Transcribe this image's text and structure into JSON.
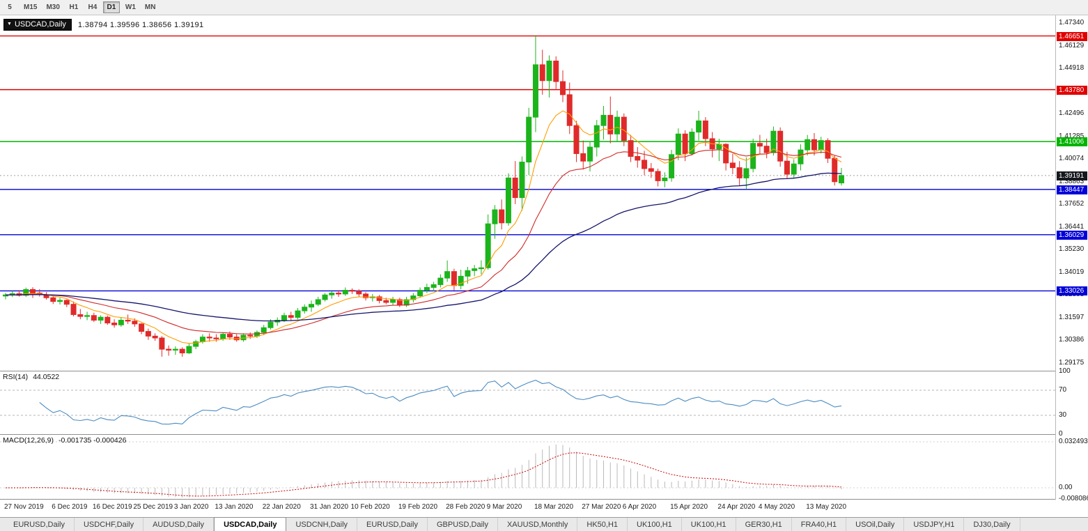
{
  "toolbar": {
    "timeframes": [
      "5",
      "M15",
      "M30",
      "H1",
      "H4",
      "D1",
      "W1",
      "MN"
    ],
    "active": "D1"
  },
  "tabs": {
    "items": [
      "EURUSD,Daily",
      "USDCHF,Daily",
      "AUDUSD,Daily",
      "USDCAD,Daily",
      "USDCNH,Daily",
      "EURUSD,Daily",
      "GBPUSD,Daily",
      "XAUUSD,Monthly",
      "HK50,H1",
      "UK100,H1",
      "UK100,H1",
      "GER30,H1",
      "FRA40,H1",
      "USOil,Daily",
      "USDJPY,H1",
      "DJ30,Daily"
    ],
    "active_index": 3
  },
  "chart_data": {
    "type": "candlestick",
    "title_overlay": {
      "symbol": "USDCAD,Daily",
      "ohlc": "1.38794 1.39596 1.38656 1.39191"
    },
    "colors": {
      "up": "#1cb41c",
      "down": "#e02a2a",
      "background": "#ffffff"
    },
    "price_axis": {
      "range": {
        "min": 1.2876,
        "max": 1.4775
      },
      "ticks": [
        "1.47340",
        "1.46129",
        "1.44918",
        "1.43707",
        "1.42496",
        "1.41285",
        "1.40074",
        "1.38863",
        "1.37652",
        "1.36441",
        "1.35230",
        "1.34019",
        "1.32808",
        "1.31597",
        "1.30386",
        "1.29175"
      ]
    },
    "hlines": [
      {
        "label": "1.46651",
        "color": "#e00000"
      },
      {
        "label": "1.43780",
        "color": "#e00000"
      },
      {
        "label": "1.41006",
        "color": "#00b400"
      },
      {
        "label": "1.38447",
        "color": "#0000d8"
      },
      {
        "label": "1.36029",
        "color": "#0000d8"
      },
      {
        "label": "1.33026",
        "color": "#0000d8"
      }
    ],
    "current_price": {
      "label": "1.39191",
      "color": "#15181d"
    },
    "moving_averages": [
      {
        "period": 8,
        "color": "#ff9c00",
        "width": 1.1
      },
      {
        "period": 21,
        "color": "#d02828",
        "width": 1.1
      },
      {
        "period": 55,
        "color": "#14146b",
        "width": 1.3
      }
    ],
    "rsi": {
      "label": "RSI(14)",
      "value": "44.0522",
      "period": 14,
      "levels": [
        70,
        30
      ],
      "axis": [
        "100",
        "70",
        "30",
        "0"
      ],
      "color": "#4a8bc2"
    },
    "macd": {
      "label": "MACD(12,26,9)",
      "values": "-0.001735 -0.000426",
      "fast": 12,
      "slow": 26,
      "signal": 9,
      "axis": [
        "0.032493",
        "0.00",
        "-0.008086"
      ],
      "hist_color": "#b9b9b9",
      "signal_color": "#c80000"
    },
    "x_labels": [
      {
        "text": "27 Nov 2019",
        "bar": 0
      },
      {
        "text": "6 Dec 2019",
        "bar": 7
      },
      {
        "text": "16 Dec 2019",
        "bar": 13
      },
      {
        "text": "25 Dec 2019",
        "bar": 19
      },
      {
        "text": "3 Jan 2020",
        "bar": 25
      },
      {
        "text": "13 Jan 2020",
        "bar": 31
      },
      {
        "text": "22 Jan 2020",
        "bar": 38
      },
      {
        "text": "31 Jan 2020",
        "bar": 45
      },
      {
        "text": "10 Feb 2020",
        "bar": 51
      },
      {
        "text": "19 Feb 2020",
        "bar": 58
      },
      {
        "text": "28 Feb 2020",
        "bar": 65
      },
      {
        "text": "9 Mar 2020",
        "bar": 71
      },
      {
        "text": "18 Mar 2020",
        "bar": 78
      },
      {
        "text": "27 Mar 2020",
        "bar": 85
      },
      {
        "text": "6 Apr 2020",
        "bar": 91
      },
      {
        "text": "15 Apr 2020",
        "bar": 98
      },
      {
        "text": "24 Apr 2020",
        "bar": 105
      },
      {
        "text": "4 May 2020",
        "bar": 111
      },
      {
        "text": "13 May 2020",
        "bar": 118
      }
    ],
    "candles": [
      [
        1.3275,
        1.3292,
        1.3257,
        1.3281
      ],
      [
        1.3281,
        1.3302,
        1.327,
        1.3288
      ],
      [
        1.3288,
        1.3306,
        1.3272,
        1.3279
      ],
      [
        1.3279,
        1.332,
        1.327,
        1.331
      ],
      [
        1.331,
        1.3322,
        1.3265,
        1.3291
      ],
      [
        1.3291,
        1.3312,
        1.3272,
        1.3282
      ],
      [
        1.3282,
        1.3296,
        1.3256,
        1.3266
      ],
      [
        1.3266,
        1.3277,
        1.3232,
        1.3246
      ],
      [
        1.3246,
        1.3266,
        1.323,
        1.3252
      ],
      [
        1.3252,
        1.3257,
        1.3216,
        1.3231
      ],
      [
        1.3231,
        1.3246,
        1.3166,
        1.3176
      ],
      [
        1.3176,
        1.3206,
        1.3151,
        1.3166
      ],
      [
        1.3166,
        1.3191,
        1.3146,
        1.3171
      ],
      [
        1.3171,
        1.3186,
        1.3136,
        1.3146
      ],
      [
        1.3146,
        1.3172,
        1.3126,
        1.3162
      ],
      [
        1.3162,
        1.3171,
        1.3121,
        1.3131
      ],
      [
        1.3131,
        1.3151,
        1.3106,
        1.3121
      ],
      [
        1.3121,
        1.3161,
        1.3111,
        1.3146
      ],
      [
        1.3146,
        1.3176,
        1.3126,
        1.3141
      ],
      [
        1.3141,
        1.3156,
        1.3111,
        1.3126
      ],
      [
        1.3126,
        1.3131,
        1.3071,
        1.3086
      ],
      [
        1.3086,
        1.3101,
        1.3041,
        1.3061
      ],
      [
        1.3061,
        1.3076,
        1.3036,
        1.3051
      ],
      [
        1.3051,
        1.3061,
        1.2951,
        1.2991
      ],
      [
        1.2991,
        1.3011,
        1.2956,
        1.2986
      ],
      [
        1.2986,
        1.3006,
        1.2961,
        1.2991
      ],
      [
        1.2991,
        1.3001,
        1.2951,
        1.2971
      ],
      [
        1.2971,
        1.3021,
        1.2966,
        1.3006
      ],
      [
        1.3006,
        1.3041,
        1.2991,
        1.3031
      ],
      [
        1.3031,
        1.3071,
        1.3021,
        1.3056
      ],
      [
        1.3056,
        1.3076,
        1.3031,
        1.3051
      ],
      [
        1.3051,
        1.3071,
        1.3031,
        1.3046
      ],
      [
        1.3046,
        1.3081,
        1.3036,
        1.3071
      ],
      [
        1.3071,
        1.3086,
        1.3041,
        1.3056
      ],
      [
        1.3056,
        1.3071,
        1.3031,
        1.3041
      ],
      [
        1.3041,
        1.3076,
        1.3031,
        1.3066
      ],
      [
        1.3066,
        1.3081,
        1.3046,
        1.3061
      ],
      [
        1.3061,
        1.3091,
        1.3051,
        1.3081
      ],
      [
        1.3081,
        1.3121,
        1.3066,
        1.3106
      ],
      [
        1.3106,
        1.3151,
        1.3096,
        1.3136
      ],
      [
        1.3136,
        1.3161,
        1.3116,
        1.3146
      ],
      [
        1.3146,
        1.3186,
        1.3136,
        1.3171
      ],
      [
        1.3171,
        1.3191,
        1.3141,
        1.3161
      ],
      [
        1.3161,
        1.3211,
        1.3151,
        1.3196
      ],
      [
        1.3196,
        1.3231,
        1.3181,
        1.3216
      ],
      [
        1.3216,
        1.3251,
        1.3191,
        1.3231
      ],
      [
        1.3231,
        1.3271,
        1.3221,
        1.3256
      ],
      [
        1.3256,
        1.3291,
        1.3246,
        1.3281
      ],
      [
        1.3281,
        1.3301,
        1.3261,
        1.3291
      ],
      [
        1.3291,
        1.3306,
        1.3271,
        1.3286
      ],
      [
        1.3286,
        1.3321,
        1.3276,
        1.3306
      ],
      [
        1.3306,
        1.3316,
        1.3286,
        1.3301
      ],
      [
        1.3301,
        1.3311,
        1.3271,
        1.3286
      ],
      [
        1.3286,
        1.3296,
        1.3251,
        1.3266
      ],
      [
        1.3266,
        1.3286,
        1.3246,
        1.3271
      ],
      [
        1.3271,
        1.3281,
        1.3236,
        1.3251
      ],
      [
        1.3251,
        1.3266,
        1.3231,
        1.3241
      ],
      [
        1.3241,
        1.3271,
        1.3226,
        1.3256
      ],
      [
        1.3256,
        1.3266,
        1.3216,
        1.3226
      ],
      [
        1.3226,
        1.3271,
        1.3216,
        1.3256
      ],
      [
        1.3256,
        1.3291,
        1.3241,
        1.3276
      ],
      [
        1.3276,
        1.3321,
        1.3266,
        1.3306
      ],
      [
        1.3306,
        1.3341,
        1.3291,
        1.3321
      ],
      [
        1.3321,
        1.3351,
        1.3301,
        1.3336
      ],
      [
        1.3336,
        1.3391,
        1.3321,
        1.3371
      ],
      [
        1.3371,
        1.3465,
        1.3351,
        1.3406
      ],
      [
        1.3406,
        1.3421,
        1.3306,
        1.3331
      ],
      [
        1.3331,
        1.3416,
        1.3311,
        1.3381
      ],
      [
        1.3381,
        1.3431,
        1.3341,
        1.3411
      ],
      [
        1.3411,
        1.3441,
        1.3381,
        1.3421
      ],
      [
        1.3421,
        1.3466,
        1.3391,
        1.3426
      ],
      [
        1.3426,
        1.3711,
        1.3416,
        1.3661
      ],
      [
        1.3661,
        1.3761,
        1.3581,
        1.3736
      ],
      [
        1.3736,
        1.3791,
        1.3631,
        1.3666
      ],
      [
        1.3666,
        1.3931,
        1.3651,
        1.3906
      ],
      [
        1.3906,
        1.3996,
        1.3766,
        1.3801
      ],
      [
        1.3801,
        1.4021,
        1.3731,
        1.3991
      ],
      [
        1.3991,
        1.4281,
        1.3921,
        1.4231
      ],
      [
        1.4231,
        1.4669,
        1.4151,
        1.4511
      ],
      [
        1.4511,
        1.4591,
        1.4351,
        1.4426
      ],
      [
        1.4426,
        1.4561,
        1.4336,
        1.4531
      ],
      [
        1.4531,
        1.4556,
        1.4381,
        1.4421
      ],
      [
        1.4421,
        1.4481,
        1.4311,
        1.4351
      ],
      [
        1.4351,
        1.4416,
        1.4141,
        1.4186
      ],
      [
        1.4186,
        1.4211,
        1.3991,
        1.4036
      ],
      [
        1.4036,
        1.4106,
        1.3951,
        1.3996
      ],
      [
        1.3996,
        1.4101,
        1.3941,
        1.4071
      ],
      [
        1.4071,
        1.4216,
        1.4021,
        1.4186
      ],
      [
        1.4186,
        1.4291,
        1.4111,
        1.4241
      ],
      [
        1.4241,
        1.4341,
        1.4091,
        1.4141
      ],
      [
        1.4141,
        1.4266,
        1.4101,
        1.4231
      ],
      [
        1.4231,
        1.4251,
        1.4076,
        1.4106
      ],
      [
        1.4106,
        1.4136,
        1.3991,
        1.4021
      ],
      [
        1.4021,
        1.4071,
        1.3961,
        1.4001
      ],
      [
        1.4001,
        1.4051,
        1.3921,
        1.3956
      ],
      [
        1.3956,
        1.3986,
        1.3906,
        1.3941
      ],
      [
        1.3941,
        1.3956,
        1.3861,
        1.3891
      ],
      [
        1.3891,
        1.3936,
        1.3856,
        1.3906
      ],
      [
        1.3906,
        1.4056,
        1.3886,
        1.4031
      ],
      [
        1.4031,
        1.4171,
        1.4001,
        1.4141
      ],
      [
        1.4141,
        1.4161,
        1.3996,
        1.4036
      ],
      [
        1.4036,
        1.4171,
        1.4026,
        1.4151
      ],
      [
        1.4151,
        1.4265,
        1.4106,
        1.4211
      ],
      [
        1.4211,
        1.4231,
        1.4076,
        1.4116
      ],
      [
        1.4116,
        1.4151,
        1.4016,
        1.4061
      ],
      [
        1.4061,
        1.4116,
        1.3996,
        1.4086
      ],
      [
        1.4086,
        1.4091,
        1.3946,
        1.3986
      ],
      [
        1.3986,
        1.4036,
        1.3926,
        1.3961
      ],
      [
        1.3961,
        1.3996,
        1.3866,
        1.3906
      ],
      [
        1.3906,
        1.4016,
        1.3846,
        1.3956
      ],
      [
        1.3956,
        1.4116,
        1.3936,
        1.4091
      ],
      [
        1.4091,
        1.4136,
        1.4036,
        1.4076
      ],
      [
        1.4076,
        1.4116,
        1.4011,
        1.4041
      ],
      [
        1.4041,
        1.4181,
        1.4026,
        1.4156
      ],
      [
        1.4156,
        1.4176,
        1.3966,
        1.3996
      ],
      [
        1.3996,
        1.4046,
        1.3901,
        1.3926
      ],
      [
        1.3926,
        1.4006,
        1.3906,
        1.3981
      ],
      [
        1.3981,
        1.4086,
        1.3946,
        1.4056
      ],
      [
        1.4056,
        1.4136,
        1.4026,
        1.4111
      ],
      [
        1.4111,
        1.4146,
        1.4026,
        1.4056
      ],
      [
        1.4056,
        1.4126,
        1.4036,
        1.4106
      ],
      [
        1.4106,
        1.4118,
        1.3986,
        1.4011
      ],
      [
        1.4011,
        1.4028,
        1.3866,
        1.3886
      ],
      [
        1.38794,
        1.39596,
        1.38656,
        1.39191
      ]
    ]
  }
}
